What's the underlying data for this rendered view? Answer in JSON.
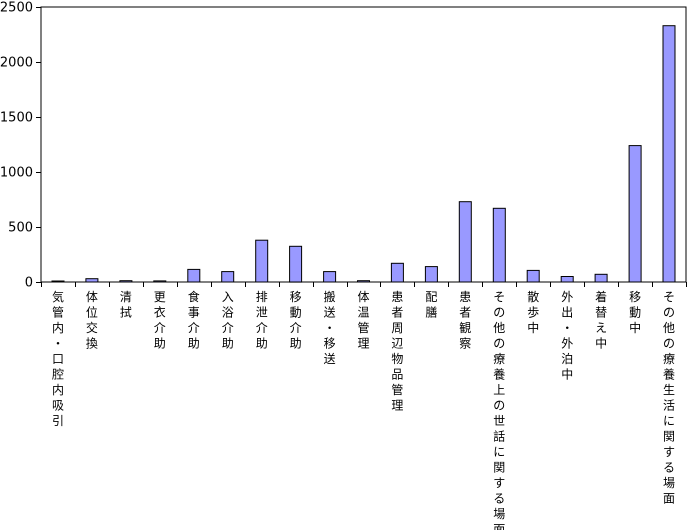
{
  "chart_data": {
    "type": "bar",
    "categories": [
      "気管内・口腔内吸引",
      "体位交換",
      "清拭",
      "更衣介助",
      "食事介助",
      "入浴介助",
      "排泄介助",
      "移動介助",
      "搬送・移送",
      "体温管理",
      "患者周辺物品管理",
      "配膳",
      "患者観察",
      "その他の療養上の世話に関する場面",
      "散歩中",
      "外出・外泊中",
      "着替え中",
      "移動中",
      "その他の療養生活に関する場面"
    ],
    "values": [
      8,
      30,
      12,
      10,
      115,
      95,
      380,
      325,
      95,
      12,
      170,
      140,
      730,
      670,
      105,
      50,
      70,
      1240,
      2330
    ],
    "yticks": [
      "0",
      "500",
      "1000",
      "1500",
      "2000",
      "2500"
    ],
    "ylim": [
      0,
      2500
    ],
    "bar_color": "#9999ff",
    "title": "",
    "xlabel": "",
    "ylabel": ""
  }
}
